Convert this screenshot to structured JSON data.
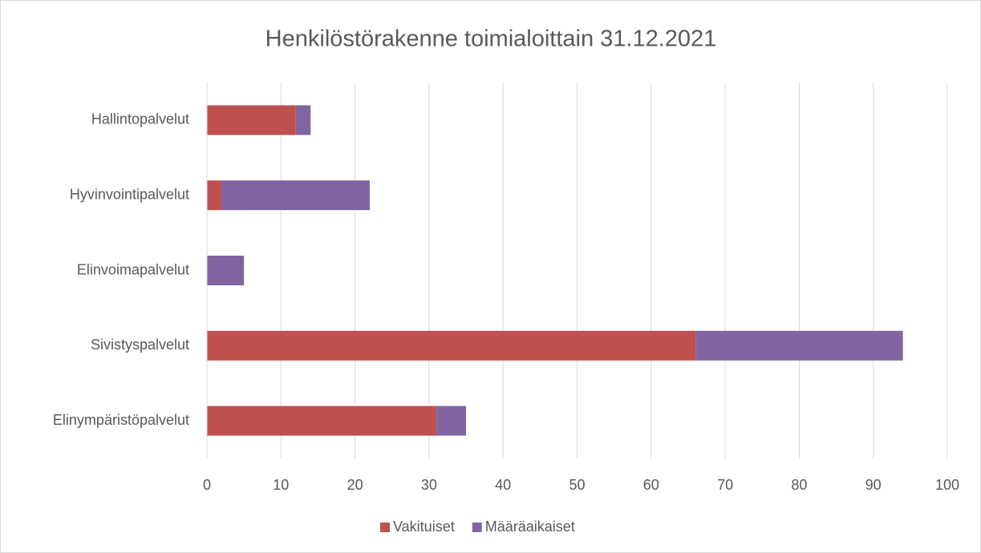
{
  "chart_data": {
    "type": "bar",
    "orientation": "horizontal",
    "stacked": true,
    "title": "Henkilöstörakenne toimialoittain 31.12.2021",
    "categories": [
      "Hallintopalvelut",
      "Hyvinvointipalvelut",
      "Elinvoimapalvelut",
      "Sivistyspalvelut",
      "Elinympäristöpalvelut"
    ],
    "series": [
      {
        "name": "Vakituiset",
        "color": "#c0504d",
        "values": [
          12,
          2,
          0,
          66,
          31
        ]
      },
      {
        "name": "Määräaikaiset",
        "color": "#8064a2",
        "values": [
          2,
          20,
          5,
          28,
          4
        ]
      }
    ],
    "xlim": [
      0,
      100
    ],
    "xticks": [
      0,
      10,
      20,
      30,
      40,
      50,
      60,
      70,
      80,
      90,
      100
    ],
    "grid": true,
    "legend": "bottom"
  }
}
